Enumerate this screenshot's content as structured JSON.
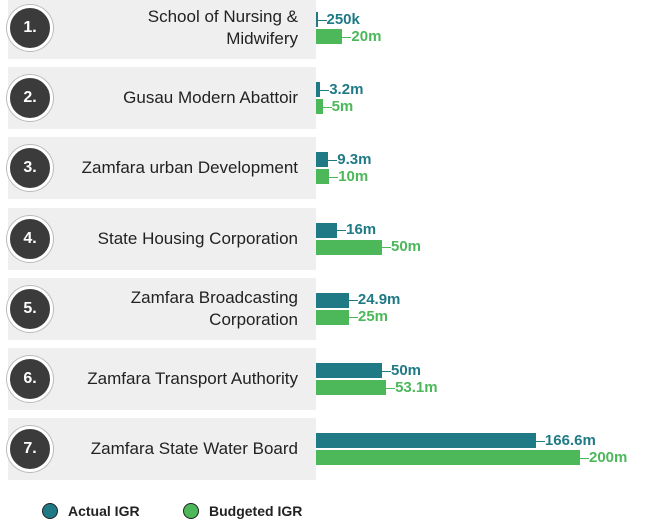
{
  "chart_data": {
    "type": "bar",
    "orientation": "horizontal",
    "numbers": [
      "1.",
      "2.",
      "3.",
      "4.",
      "5.",
      "6.",
      "7."
    ],
    "categories": [
      "School of Nursing & Midwifery",
      "Gusau Modern Abattoir",
      "Zamfara urban Development",
      "State Housing Corporation",
      "Zamfara Broadcasting Corporation",
      "Zamfara Transport Authority",
      "Zamfara State Water Board"
    ],
    "series": [
      {
        "name": "Actual IGR",
        "color": "#1f7a86",
        "values": [
          0.25,
          3.2,
          9.3,
          16,
          24.9,
          50,
          166.6
        ],
        "value_labels": [
          "250k",
          "3.2m",
          "9.3m",
          "16m",
          "24.9m",
          "50m",
          "166.6m"
        ]
      },
      {
        "name": "Budgeted IGR",
        "color": "#4cb85a",
        "values": [
          20,
          5,
          10,
          50,
          25,
          53.1,
          200
        ],
        "value_labels": [
          "20m",
          "5m",
          "10m",
          "50m",
          "25m",
          "53.1m",
          "200m"
        ]
      }
    ],
    "legend": "bottom-left"
  }
}
